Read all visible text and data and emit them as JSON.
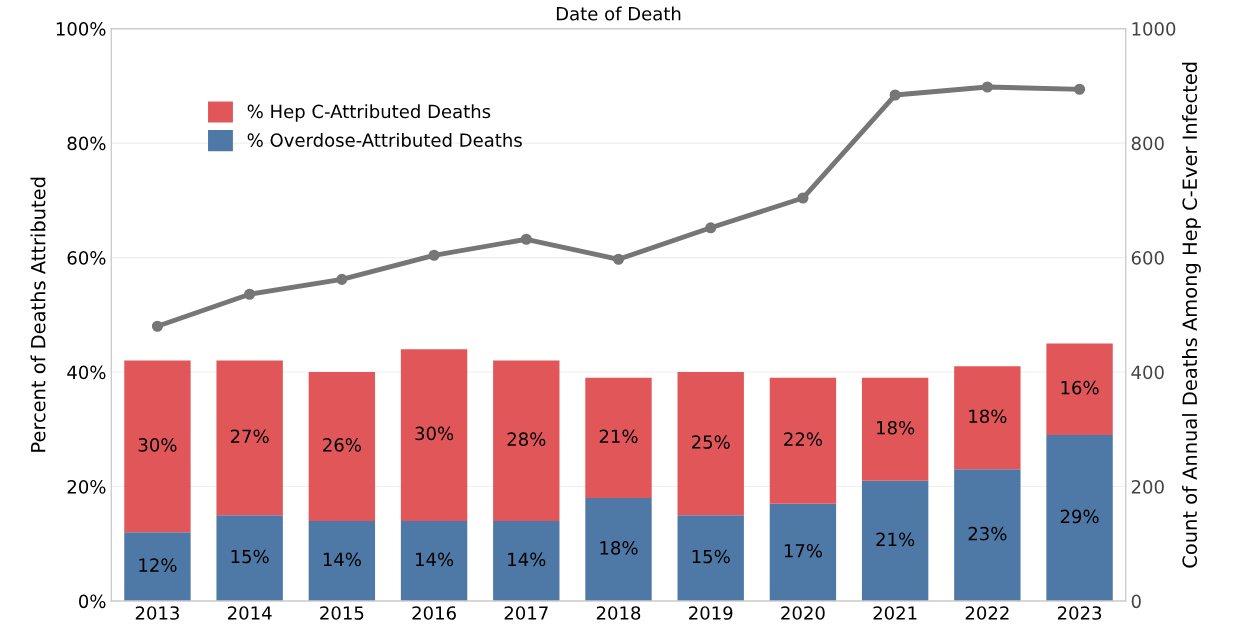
{
  "chart_data": {
    "type": "bar",
    "title": "Date of Death",
    "ylabel": "Percent of Deaths Attributed",
    "y2label": "Count of Annual Deaths Among Hep C-Ever Infected",
    "categories": [
      "2013",
      "2014",
      "2015",
      "2016",
      "2017",
      "2018",
      "2019",
      "2020",
      "2021",
      "2022",
      "2023"
    ],
    "stacked": true,
    "series": [
      {
        "name": "% Overdose-Attributed Deaths",
        "color": "#4e79a7",
        "values": [
          12,
          15,
          14,
          14,
          14,
          18,
          15,
          17,
          21,
          23,
          29
        ],
        "value_labels": [
          "12%",
          "15%",
          "14%",
          "14%",
          "14%",
          "18%",
          "15%",
          "17%",
          "21%",
          "23%",
          "29%"
        ]
      },
      {
        "name": "% Hep C-Attributed Deaths",
        "color": "#e15759",
        "values": [
          30,
          27,
          26,
          30,
          28,
          21,
          25,
          22,
          18,
          18,
          16
        ],
        "value_labels": [
          "30%",
          "27%",
          "26%",
          "30%",
          "28%",
          "21%",
          "25%",
          "22%",
          "18%",
          "18%",
          "16%"
        ]
      },
      {
        "type": "line",
        "axis": "y2",
        "color": "#767676",
        "marker": "circle",
        "values": [
          480,
          536,
          562,
          604,
          632,
          597,
          652,
          704,
          884,
          898,
          894
        ]
      }
    ],
    "ylim": [
      0,
      100
    ],
    "yticks": [
      {
        "value": 0,
        "label": "0%"
      },
      {
        "value": 20,
        "label": "20%"
      },
      {
        "value": 40,
        "label": "40%"
      },
      {
        "value": 60,
        "label": "60%"
      },
      {
        "value": 80,
        "label": "80%"
      },
      {
        "value": 100,
        "label": "100%"
      }
    ],
    "y2lim": [
      0,
      1000
    ],
    "y2ticks": [
      0,
      200,
      400,
      600,
      800,
      1000
    ],
    "grid": "y",
    "legend": "top left"
  }
}
